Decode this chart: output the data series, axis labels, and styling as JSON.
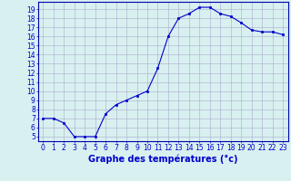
{
  "x": [
    0,
    1,
    2,
    3,
    4,
    5,
    6,
    7,
    8,
    9,
    10,
    11,
    12,
    13,
    14,
    15,
    16,
    17,
    18,
    19,
    20,
    21,
    22,
    23
  ],
  "y": [
    7.0,
    7.0,
    6.5,
    5.0,
    5.0,
    5.0,
    7.5,
    8.5,
    9.0,
    9.5,
    10.0,
    12.5,
    16.0,
    18.0,
    18.5,
    19.2,
    19.2,
    18.5,
    18.2,
    17.5,
    16.7,
    16.5,
    16.5,
    16.2
  ],
  "line_color": "#0000cc",
  "marker": "s",
  "marker_size": 2,
  "bg_color": "#d8f0f0",
  "grid_color": "#aaaacc",
  "xlabel": "Graphe des températures (°c)",
  "xlabel_fontsize": 7,
  "xlabel_color": "#0000cc",
  "yticks": [
    5,
    6,
    7,
    8,
    9,
    10,
    11,
    12,
    13,
    14,
    15,
    16,
    17,
    18,
    19
  ],
  "xticks": [
    0,
    1,
    2,
    3,
    4,
    5,
    6,
    7,
    8,
    9,
    10,
    11,
    12,
    13,
    14,
    15,
    16,
    17,
    18,
    19,
    20,
    21,
    22,
    23
  ],
  "ylim": [
    4.5,
    19.8
  ],
  "xlim": [
    -0.5,
    23.5
  ],
  "tick_fontsize": 5.5,
  "tick_color": "#0000cc",
  "spine_color": "#0000aa"
}
